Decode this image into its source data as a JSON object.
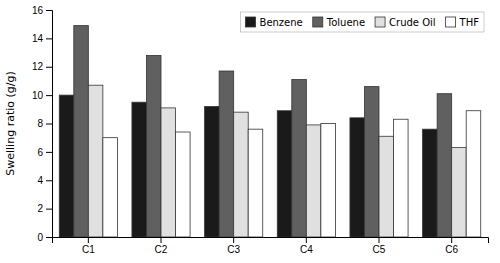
{
  "chart_data": {
    "type": "bar",
    "categories": [
      "C1",
      "C2",
      "C3",
      "C4",
      "C5",
      "C6"
    ],
    "series": [
      {
        "name": "Benzene",
        "color": "#1a1a1a",
        "values": [
          10.0,
          9.5,
          9.2,
          8.9,
          8.4,
          7.6
        ]
      },
      {
        "name": "Toluene",
        "color": "#606060",
        "values": [
          14.9,
          12.8,
          11.7,
          11.1,
          10.6,
          10.1
        ]
      },
      {
        "name": "Crude Oil",
        "color": "#e0e0e0",
        "values": [
          10.7,
          9.1,
          8.8,
          7.9,
          7.1,
          6.3
        ]
      },
      {
        "name": "THF",
        "color": "#ffffff",
        "values": [
          7.0,
          7.4,
          7.6,
          8.0,
          8.3,
          8.9
        ]
      }
    ],
    "ylabel": "Swelling ratio (g/g)",
    "ylim": [
      0,
      16
    ],
    "yticks": [
      0,
      2,
      4,
      6,
      8,
      10,
      12,
      14,
      16
    ],
    "legend": "upper right",
    "grid": false
  }
}
